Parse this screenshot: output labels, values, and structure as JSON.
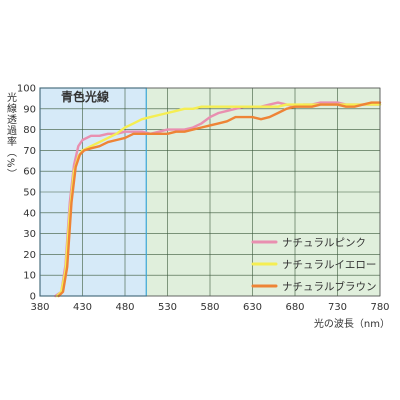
{
  "chart_data": {
    "type": "line",
    "title": "",
    "ylabel": "光線透過率（%）",
    "xlabel": "光の波長（nm）",
    "xlim": [
      380,
      780
    ],
    "ylim": [
      0,
      100
    ],
    "x_ticks": [
      380,
      430,
      480,
      530,
      580,
      630,
      680,
      730,
      780
    ],
    "y_ticks": [
      0,
      10,
      20,
      30,
      40,
      50,
      60,
      70,
      80,
      90,
      100
    ],
    "grid": true,
    "legend_position": "bottom-right",
    "region": {
      "label": "青色光線",
      "from": 380,
      "to": 505,
      "color": "#d6eaf8",
      "border": "#3aa6d6"
    },
    "rest_color": "#e0efdc",
    "series": [
      {
        "name": "ナチュラルピンク",
        "color": "#e98fb0",
        "points": [
          [
            398,
            0
          ],
          [
            405,
            2
          ],
          [
            410,
            15
          ],
          [
            415,
            45
          ],
          [
            420,
            63
          ],
          [
            425,
            72
          ],
          [
            430,
            75
          ],
          [
            440,
            77
          ],
          [
            450,
            77
          ],
          [
            460,
            78
          ],
          [
            470,
            78
          ],
          [
            480,
            79
          ],
          [
            490,
            79
          ],
          [
            500,
            79
          ],
          [
            510,
            78
          ],
          [
            520,
            79
          ],
          [
            530,
            80
          ],
          [
            540,
            80
          ],
          [
            550,
            80
          ],
          [
            560,
            81
          ],
          [
            570,
            83
          ],
          [
            580,
            86
          ],
          [
            590,
            88
          ],
          [
            600,
            89
          ],
          [
            610,
            90
          ],
          [
            620,
            91
          ],
          [
            630,
            91
          ],
          [
            640,
            91
          ],
          [
            650,
            92
          ],
          [
            660,
            93
          ],
          [
            670,
            92
          ],
          [
            680,
            91
          ],
          [
            690,
            92
          ],
          [
            700,
            92
          ],
          [
            710,
            93
          ],
          [
            720,
            93
          ],
          [
            730,
            93
          ],
          [
            740,
            92
          ],
          [
            750,
            92
          ],
          [
            760,
            92
          ],
          [
            770,
            92
          ],
          [
            780,
            92
          ]
        ]
      },
      {
        "name": "ナチュラルイエロー",
        "color": "#f5ee52",
        "points": [
          [
            400,
            0
          ],
          [
            405,
            2
          ],
          [
            410,
            12
          ],
          [
            415,
            40
          ],
          [
            420,
            60
          ],
          [
            425,
            67
          ],
          [
            430,
            70
          ],
          [
            440,
            72
          ],
          [
            450,
            74
          ],
          [
            460,
            76
          ],
          [
            470,
            78
          ],
          [
            480,
            81
          ],
          [
            490,
            83
          ],
          [
            500,
            85
          ],
          [
            510,
            86
          ],
          [
            520,
            87
          ],
          [
            530,
            88
          ],
          [
            540,
            89
          ],
          [
            550,
            90
          ],
          [
            560,
            90
          ],
          [
            570,
            91
          ],
          [
            580,
            91
          ],
          [
            590,
            91
          ],
          [
            600,
            91
          ],
          [
            610,
            91
          ],
          [
            620,
            91
          ],
          [
            630,
            91
          ],
          [
            640,
            91
          ],
          [
            650,
            91
          ],
          [
            660,
            91
          ],
          [
            670,
            92
          ],
          [
            680,
            92
          ],
          [
            690,
            92
          ],
          [
            700,
            92
          ],
          [
            710,
            92
          ],
          [
            720,
            92
          ],
          [
            730,
            92
          ],
          [
            740,
            92
          ],
          [
            750,
            92
          ],
          [
            760,
            92
          ],
          [
            770,
            92
          ],
          [
            780,
            92
          ]
        ]
      },
      {
        "name": "ナチュラルブラウン",
        "color": "#ee8436",
        "points": [
          [
            402,
            0
          ],
          [
            407,
            2
          ],
          [
            412,
            14
          ],
          [
            417,
            45
          ],
          [
            422,
            62
          ],
          [
            427,
            68
          ],
          [
            432,
            70
          ],
          [
            440,
            71
          ],
          [
            450,
            72
          ],
          [
            460,
            74
          ],
          [
            470,
            75
          ],
          [
            480,
            76
          ],
          [
            490,
            78
          ],
          [
            500,
            78
          ],
          [
            510,
            78
          ],
          [
            520,
            78
          ],
          [
            530,
            78
          ],
          [
            540,
            79
          ],
          [
            550,
            79
          ],
          [
            560,
            80
          ],
          [
            570,
            81
          ],
          [
            580,
            82
          ],
          [
            590,
            83
          ],
          [
            600,
            84
          ],
          [
            610,
            86
          ],
          [
            620,
            86
          ],
          [
            630,
            86
          ],
          [
            640,
            85
          ],
          [
            650,
            86
          ],
          [
            660,
            88
          ],
          [
            670,
            90
          ],
          [
            680,
            91
          ],
          [
            690,
            91
          ],
          [
            700,
            91
          ],
          [
            710,
            92
          ],
          [
            720,
            92
          ],
          [
            730,
            92
          ],
          [
            740,
            91
          ],
          [
            750,
            91
          ],
          [
            760,
            92
          ],
          [
            770,
            93
          ],
          [
            780,
            93
          ]
        ]
      }
    ]
  }
}
